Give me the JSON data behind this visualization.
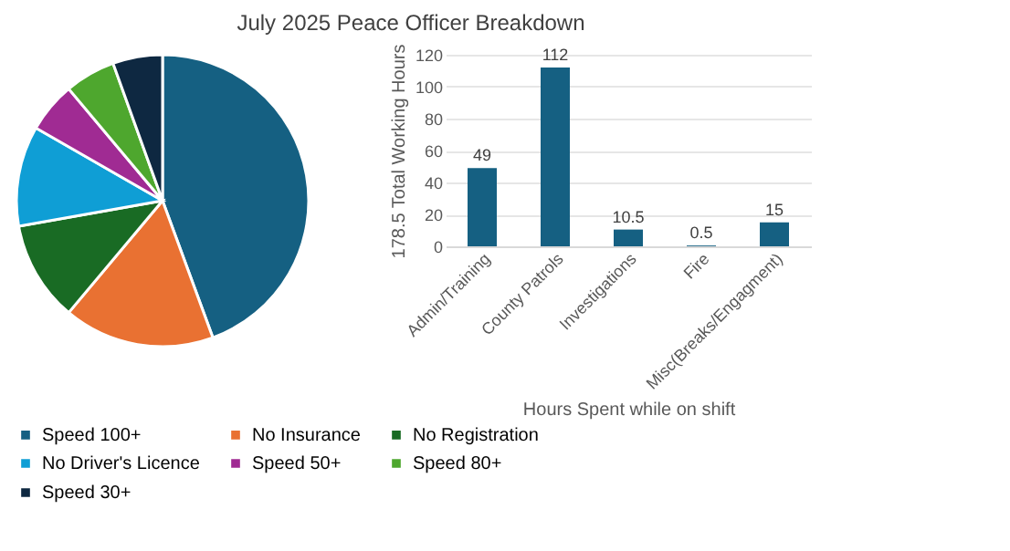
{
  "chart_data": [
    {
      "type": "pie",
      "title": "July 2025 Peace Officer Breakdown",
      "categories": [
        "Speed 100+",
        "No Insurance",
        "No Registration",
        "No Driver's Licence",
        "Speed 50+",
        "Speed 80+",
        "Speed 30+"
      ],
      "values": [
        44.4,
        16.7,
        11.1,
        11.1,
        5.6,
        5.6,
        5.5
      ],
      "colors": [
        "#156082",
        "#e97132",
        "#196b24",
        "#0f9ed5",
        "#a02b93",
        "#4ea72e",
        "#0e2841"
      ],
      "legend": "bottom"
    },
    {
      "type": "bar",
      "categories": [
        "Admin/Training",
        "County Patrols",
        "Investigations",
        "Fire",
        "Misc(Breaks/Engagment)"
      ],
      "values": [
        49,
        112,
        10.5,
        0.5,
        15
      ],
      "color": "#156082",
      "xlabel": "Hours Spent while on shift",
      "ylabel": "178.5 Total Working Hours",
      "ylim": [
        0,
        120
      ],
      "yticks": [
        0,
        20,
        40,
        60,
        80,
        100,
        120
      ],
      "grid": "y",
      "data_labels": true
    }
  ]
}
